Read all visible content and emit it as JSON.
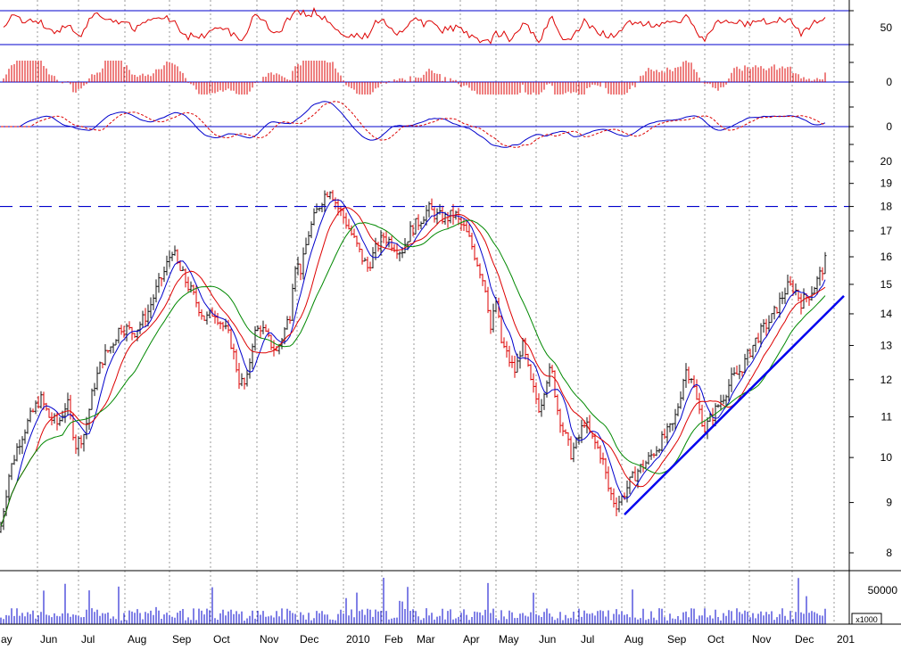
{
  "chart_data": {
    "type": "candlestick",
    "colors": {
      "ma_fast": "#0000cc",
      "ma_mid": "#dd0000",
      "ma_slow": "#008800",
      "trendline": "#0000ee",
      "resistance": "#0000cc",
      "bars_up": "#111111",
      "bars_down": "#dd0000",
      "volume": "#0000cc",
      "indicator": "#dd0000",
      "grid": "#999999"
    },
    "x_axis": {
      "labels": [
        "ay",
        "Jun",
        "Jul",
        "Aug",
        "Sep",
        "Oct",
        "Nov",
        "Dec",
        "2010",
        "Feb",
        "Mar",
        "Apr",
        "May",
        "Jun",
        "Jul",
        "Aug",
        "Sep",
        "Oct",
        "Nov",
        "Dec",
        "201"
      ],
      "label_x": [
        -2,
        42,
        88,
        140,
        190,
        236,
        288,
        333,
        385,
        428,
        464,
        516,
        556,
        601,
        648,
        697,
        745,
        790,
        840,
        888,
        935
      ]
    },
    "price_panel": {
      "scale": "log",
      "ylim": [
        7.5,
        21
      ],
      "tick_labels": [
        "8",
        "9",
        "10",
        "11",
        "12",
        "13",
        "14",
        "15",
        "16",
        "17",
        "18",
        "19",
        "20"
      ],
      "resistance_level": 18,
      "trendline": {
        "from": [
          700,
          8.75
        ],
        "to": [
          946,
          14.6
        ]
      },
      "price_anchors": [
        [
          0,
          8.4
        ],
        [
          10,
          9.6
        ],
        [
          20,
          10.3
        ],
        [
          30,
          10.8
        ],
        [
          45,
          11.5
        ],
        [
          55,
          11.0
        ],
        [
          65,
          10.8
        ],
        [
          75,
          11.4
        ],
        [
          85,
          10.3
        ],
        [
          95,
          10.6
        ],
        [
          105,
          11.8
        ],
        [
          115,
          12.6
        ],
        [
          125,
          13.0
        ],
        [
          135,
          13.6
        ],
        [
          150,
          13.4
        ],
        [
          165,
          14.0
        ],
        [
          175,
          14.8
        ],
        [
          185,
          15.5
        ],
        [
          193,
          16.3
        ],
        [
          200,
          15.6
        ],
        [
          210,
          15.0
        ],
        [
          220,
          14.4
        ],
        [
          230,
          13.8
        ],
        [
          240,
          14.1
        ],
        [
          250,
          13.6
        ],
        [
          258,
          13.2
        ],
        [
          268,
          12.0
        ],
        [
          276,
          11.8
        ],
        [
          284,
          13.3
        ],
        [
          292,
          13.6
        ],
        [
          300,
          13.2
        ],
        [
          310,
          12.8
        ],
        [
          318,
          13.4
        ],
        [
          325,
          14.0
        ],
        [
          330,
          15.8
        ],
        [
          338,
          15.5
        ],
        [
          345,
          16.8
        ],
        [
          355,
          17.8
        ],
        [
          362,
          18.4
        ],
        [
          370,
          18.8
        ],
        [
          378,
          18.0
        ],
        [
          386,
          17.5
        ],
        [
          395,
          16.8
        ],
        [
          405,
          16.0
        ],
        [
          412,
          15.6
        ],
        [
          420,
          16.2
        ],
        [
          430,
          16.8
        ],
        [
          440,
          16.5
        ],
        [
          450,
          16.2
        ],
        [
          460,
          17.0
        ],
        [
          470,
          17.4
        ],
        [
          480,
          17.9
        ],
        [
          490,
          17.6
        ],
        [
          500,
          17.5
        ],
        [
          510,
          17.7
        ],
        [
          515,
          17.3
        ],
        [
          520,
          17.1
        ],
        [
          528,
          16.5
        ],
        [
          535,
          15.8
        ],
        [
          540,
          15.3
        ],
        [
          545,
          14.8
        ],
        [
          550,
          13.5
        ],
        [
          556,
          14.4
        ],
        [
          562,
          13.1
        ],
        [
          570,
          12.6
        ],
        [
          578,
          12.2
        ],
        [
          585,
          13.1
        ],
        [
          595,
          11.9
        ],
        [
          605,
          11.2
        ],
        [
          612,
          12.0
        ],
        [
          618,
          12.3
        ],
        [
          625,
          11.2
        ],
        [
          632,
          10.6
        ],
        [
          640,
          10.1
        ],
        [
          648,
          10.4
        ],
        [
          655,
          10.9
        ],
        [
          662,
          10.5
        ],
        [
          668,
          10.3
        ],
        [
          675,
          10.0
        ],
        [
          682,
          9.3
        ],
        [
          690,
          8.95
        ],
        [
          697,
          9.1
        ],
        [
          705,
          9.4
        ],
        [
          715,
          9.7
        ],
        [
          725,
          9.9
        ],
        [
          735,
          10.2
        ],
        [
          745,
          10.5
        ],
        [
          755,
          10.8
        ],
        [
          762,
          11.5
        ],
        [
          768,
          12.3
        ],
        [
          775,
          12.1
        ],
        [
          782,
          11.3
        ],
        [
          790,
          10.7
        ],
        [
          798,
          11.0
        ],
        [
          805,
          11.3
        ],
        [
          812,
          11.6
        ],
        [
          820,
          12.0
        ],
        [
          828,
          12.2
        ],
        [
          835,
          12.5
        ],
        [
          842,
          12.9
        ],
        [
          850,
          13.3
        ],
        [
          858,
          13.6
        ],
        [
          866,
          13.9
        ],
        [
          874,
          14.4
        ],
        [
          882,
          14.9
        ],
        [
          890,
          14.9
        ],
        [
          898,
          14.4
        ],
        [
          906,
          14.6
        ],
        [
          914,
          15.0
        ],
        [
          920,
          15.4
        ],
        [
          926,
          15.9
        ]
      ]
    },
    "indicator_panels": [
      {
        "name": "rsi",
        "tick_label": "50",
        "reference": 50
      },
      {
        "name": "momentum_histogram",
        "tick_label": "0",
        "reference": 0
      },
      {
        "name": "macd",
        "tick_label": "0",
        "reference": 0
      }
    ],
    "volume_panel": {
      "tick_label": "50000",
      "unit_label": "x1000"
    }
  }
}
